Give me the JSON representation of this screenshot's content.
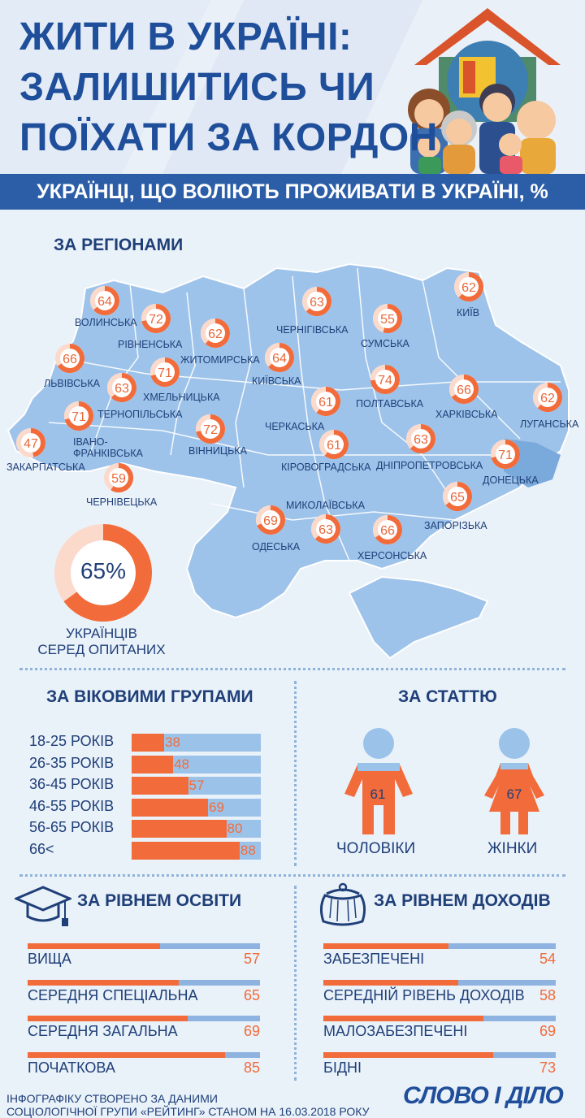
{
  "header": {
    "title_lines": [
      "ЖИТИ В УКРАЇНІ:",
      "ЗАЛИШИТИСЬ ЧИ",
      "ПОЇХАТИ ЗА КОРДОН"
    ],
    "subtitle": "УКРАЇНЦІ, ЩО ВОЛІЮТЬ ПРОЖИВАТИ В УКРАЇНІ, %"
  },
  "regions_section": {
    "title": "ЗА РЕГІОНАМИ",
    "total_value": "65%",
    "total_caption_1": "УКРАЇНЦІВ",
    "total_caption_2": "СЕРЕД ОПИТАНИХ"
  },
  "age_section": {
    "title": "ЗА ВІКОВИМИ ГРУПАМИ"
  },
  "gender_section": {
    "title": "ЗА СТАТТЮ",
    "male_value": "61",
    "male_label": "ЧОЛОВІКИ",
    "female_value": "67",
    "female_label": "ЖІНКИ"
  },
  "education_section": {
    "title": "ЗА РІВНЕМ ОСВІТИ"
  },
  "income_section": {
    "title": "ЗА РІВНЕМ ДОХОДІВ"
  },
  "footer": {
    "line1": "ІНФОГРАФІКУ СТВОРЕНО ЗА ДАНИМИ",
    "line2": "СОЦІОЛОГІЧНОЇ ГРУПИ «РЕЙТИНГ» СТАНОМ НА 16.03.2018 РОКУ",
    "logo": "СЛОВО І ДІЛО"
  },
  "colors": {
    "orange": "#f26b3a",
    "blue": "#9bc3ea",
    "navy": "#1f3f78",
    "ring_light": "#fbd9cb"
  },
  "chart_data": [
    {
      "type": "pie",
      "title": "ЗА РЕГІОНАМИ",
      "unit": "%",
      "regions": [
        {
          "name": "ВОЛИНСЬКА",
          "value": 64
        },
        {
          "name": "РІВНЕНСЬКА",
          "value": 72
        },
        {
          "name": "ЖИТОМИРСЬКА",
          "value": 62
        },
        {
          "name": "ЛЬВІВСЬКА",
          "value": 66
        },
        {
          "name": "ХМЕЛЬНИЦЬКА",
          "value": 71
        },
        {
          "name": "ТЕРНОПІЛЬСЬКА",
          "value": 63
        },
        {
          "name": "ІВАНО-ФРАНКІВСЬКА",
          "value": 71
        },
        {
          "name": "ЗАКАРПАТСЬКА",
          "value": 47
        },
        {
          "name": "ЧЕРНІВЕЦЬКА",
          "value": 59
        },
        {
          "name": "ВІННИЦЬКА",
          "value": 72
        },
        {
          "name": "КИЇВСЬКА",
          "value": 64
        },
        {
          "name": "ЧЕРНІГІВСЬКА",
          "value": 63
        },
        {
          "name": "СУМСЬКА",
          "value": 55
        },
        {
          "name": "КИЇВ",
          "value": 62
        },
        {
          "name": "ЧЕРКАСЬКА",
          "value": 61
        },
        {
          "name": "ПОЛТАВСЬКА",
          "value": 74
        },
        {
          "name": "ХАРКІВСЬКА",
          "value": 66
        },
        {
          "name": "ЛУГАНСЬКА",
          "value": 62
        },
        {
          "name": "КІРОВОГРАДСЬКА",
          "value": 61
        },
        {
          "name": "ДНІПРОПЕТРОВСЬКА",
          "value": 63
        },
        {
          "name": "ДОНЕЦЬКА",
          "value": 71
        },
        {
          "name": "ЗАПОРІЗЬКА",
          "value": 65
        },
        {
          "name": "МИКОЛАЇВСЬКА",
          "value": 63
        },
        {
          "name": "ОДЕСЬКА",
          "value": 69
        },
        {
          "name": "ХЕРСОНСЬКА",
          "value": 66
        }
      ],
      "total": 65
    },
    {
      "type": "bar",
      "title": "ЗА ВІКОВИМИ ГРУПАМИ",
      "categories": [
        "18-25 РОКІВ",
        "26-35 РОКІВ",
        "36-45 РОКІВ",
        "46-55 РОКІВ",
        "56-65 РОКІВ",
        "66<"
      ],
      "values": [
        38,
        48,
        57,
        69,
        80,
        88
      ],
      "ylim": [
        0,
        100
      ]
    },
    {
      "type": "bar",
      "title": "ЗА СТАТТЮ",
      "categories": [
        "ЧОЛОВІКИ",
        "ЖІНКИ"
      ],
      "values": [
        61,
        67
      ]
    },
    {
      "type": "bar",
      "title": "ЗА РІВНЕМ ОСВІТИ",
      "categories": [
        "ВИЩА",
        "СЕРЕДНЯ СПЕЦІАЛЬНА",
        "СЕРЕДНЯ ЗАГАЛЬНА",
        "ПОЧАТКОВА"
      ],
      "values": [
        57,
        65,
        69,
        85
      ],
      "ylim": [
        0,
        100
      ]
    },
    {
      "type": "bar",
      "title": "ЗА РІВНЕМ ДОХОДІВ",
      "categories": [
        "ЗАБЕЗПЕЧЕНІ",
        "СЕРЕДНІЙ РІВЕНЬ ДОХОДІВ",
        "МАЛОЗАБЕЗПЕЧЕНІ",
        "БІДНІ"
      ],
      "values": [
        54,
        58,
        69,
        73
      ],
      "ylim": [
        0,
        100
      ]
    }
  ]
}
